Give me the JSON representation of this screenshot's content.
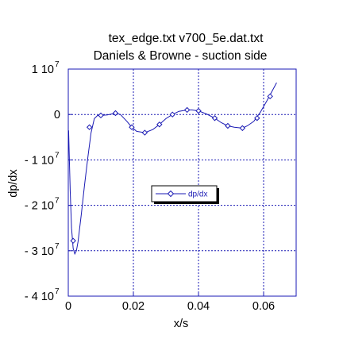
{
  "chart_data": {
    "type": "line",
    "title": [
      "tex_edge.txt   v700_5e.dat.txt",
      "Daniels & Browne - suction side"
    ],
    "xlabel": "x/s",
    "ylabel": "dp/dx",
    "xlim": [
      0,
      0.07
    ],
    "ylim": [
      -40000000,
      10000000
    ],
    "x_ticks": [
      {
        "value": 0,
        "label": "0"
      },
      {
        "value": 0.02,
        "label": "0.02"
      },
      {
        "value": 0.04,
        "label": "0.04"
      },
      {
        "value": 0.06,
        "label": "0.06"
      }
    ],
    "y_ticks": [
      {
        "value": 10000000,
        "mantissa": "1 10",
        "exponent": "7"
      },
      {
        "value": 0,
        "mantissa": "0",
        "exponent": ""
      },
      {
        "value": -10000000,
        "mantissa": "- 1 10",
        "exponent": "7"
      },
      {
        "value": -20000000,
        "mantissa": "- 2 10",
        "exponent": "7"
      },
      {
        "value": -30000000,
        "mantissa": "- 3 10",
        "exponent": "7"
      },
      {
        "value": -40000000,
        "mantissa": "- 4 10",
        "exponent": "7"
      }
    ],
    "grid": true,
    "legend_position": "center",
    "series": [
      {
        "name": "dp/dx",
        "color": "#1a1ab4",
        "marker": "diamond",
        "x": [
          0.0001,
          0.0003,
          0.0006,
          0.001,
          0.0015,
          0.002,
          0.0025,
          0.003,
          0.004,
          0.005,
          0.006,
          0.007,
          0.008,
          0.009,
          0.01,
          0.012,
          0.0145,
          0.016,
          0.018,
          0.0195,
          0.021,
          0.0235,
          0.026,
          0.028,
          0.03,
          0.032,
          0.034,
          0.0365,
          0.038,
          0.04,
          0.0425,
          0.045,
          0.047,
          0.049,
          0.051,
          0.0535,
          0.055,
          0.057,
          0.059,
          0.061,
          0.0625,
          0.064
        ],
        "y": [
          -3500000,
          -9000000,
          -17000000,
          -25000000,
          -29500000,
          -30700000,
          -30000000,
          -28000000,
          -22000000,
          -15500000,
          -9500000,
          -4000000,
          -900000,
          -200000,
          -200000,
          -100000,
          300000,
          0,
          -1500000,
          -2800000,
          -3700000,
          -4000000,
          -3300000,
          -2200000,
          -900000,
          0,
          700000,
          1000000,
          1000000,
          800000,
          100000,
          -800000,
          -1800000,
          -2500000,
          -2800000,
          -3000000,
          -2500000,
          -1500000,
          500000,
          3000000,
          5000000,
          7000000
        ],
        "marker_x": [
          0.0015,
          0.0065,
          0.01,
          0.0145,
          0.0195,
          0.0235,
          0.028,
          0.032,
          0.0365,
          0.04,
          0.045,
          0.049,
          0.0535,
          0.058,
          0.062
        ],
        "marker_y": [
          -27800000,
          -2800000,
          -200000,
          300000,
          -2800000,
          -4000000,
          -2200000,
          0,
          1000000,
          800000,
          -800000,
          -2500000,
          -3000000,
          -800000,
          4000000
        ]
      }
    ]
  }
}
